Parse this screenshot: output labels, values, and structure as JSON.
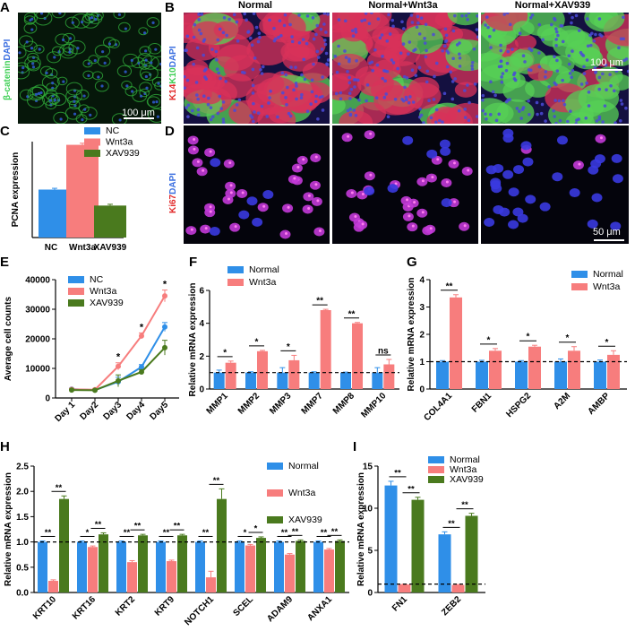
{
  "panels": {
    "a": "A",
    "b": "B",
    "c": "C",
    "d": "D",
    "e": "E",
    "f": "F",
    "g": "G",
    "h": "H",
    "i": "I"
  },
  "micrographs": {
    "columns": [
      "Normal",
      "Normal+Wnt3a",
      "Normal+XAV939"
    ],
    "a_label_green": "β-catenin",
    "a_label_blue": "DAPI",
    "a_scale": "100 μm",
    "b_label_red": "K14",
    "b_label_green": "K10",
    "b_label_blue": "DAPI",
    "b_scale": "100 μm",
    "d_label_red": "Ki67",
    "d_label_blue": "DAPI",
    "d_scale": "50 μm"
  },
  "colors": {
    "blue": "#2f8fe8",
    "red": "#f77d7d",
    "green": "#4a7a1e"
  },
  "chart_data": [
    {
      "panel": "C",
      "type": "bar",
      "categories": [
        "NC",
        "Wnt3a",
        "XAV939"
      ],
      "values": [
        1.5,
        2.9,
        1.0
      ],
      "errors": [
        0.04,
        0.05,
        0.04
      ],
      "colors": [
        "#2f8fe8",
        "#f77d7d",
        "#4a7a1e"
      ],
      "legend": [
        "NC",
        "Wnt3a",
        "XAV939"
      ],
      "legend_position": "top-right",
      "ylabel": "PCNA expression",
      "ylim": [
        0,
        3.0
      ]
    },
    {
      "panel": "E",
      "type": "line",
      "categories": [
        "Day 1",
        "Day2",
        "Day3",
        "Day4",
        "Day5"
      ],
      "series": [
        {
          "name": "NC",
          "values": [
            3000,
            2700,
            5500,
            10500,
            24000
          ],
          "errors": [
            300,
            300,
            1500,
            800,
            1500
          ],
          "color": "#2f8fe8"
        },
        {
          "name": "Wnt3a",
          "values": [
            2900,
            2800,
            10700,
            21000,
            34500
          ],
          "errors": [
            300,
            300,
            1200,
            1000,
            2000
          ],
          "color": "#f77d7d"
        },
        {
          "name": "XAV939",
          "values": [
            2700,
            2600,
            5800,
            8800,
            17000
          ],
          "errors": [
            300,
            300,
            2000,
            800,
            2500
          ],
          "color": "#4a7a1e"
        }
      ],
      "significance": [
        "",
        "",
        "*",
        "*",
        "*"
      ],
      "ylabel": "Average cell counts",
      "yticks": [
        "0",
        "10000",
        "20000",
        "30000",
        "40000"
      ],
      "ylim": [
        0,
        40000
      ],
      "legend_position": "top-left"
    },
    {
      "panel": "F",
      "type": "bar",
      "categories": [
        "MMP1",
        "MMP2",
        "MMP3",
        "MMP7",
        "MMP8",
        "MMP10"
      ],
      "series": [
        {
          "name": "Normal",
          "values": [
            1.0,
            1.0,
            1.0,
            1.0,
            1.0,
            1.0
          ],
          "errors": [
            0.15,
            0.05,
            0.3,
            0.05,
            0.03,
            0.3
          ],
          "color": "#2f8fe8"
        },
        {
          "name": "Wnt3a",
          "values": [
            1.6,
            2.3,
            1.75,
            4.8,
            4.0,
            1.5
          ],
          "errors": [
            0.1,
            0.05,
            0.3,
            0.05,
            0.05,
            0.3
          ],
          "color": "#f77d7d"
        }
      ],
      "significance": [
        "*",
        "*",
        "*",
        "**",
        "**",
        "ns"
      ],
      "ylabel": "Relative mRNA expression",
      "yticks": [
        "0",
        "2",
        "4",
        "6"
      ],
      "ylim": [
        0,
        6
      ],
      "reference_line": 1,
      "legend_position": "top-left"
    },
    {
      "panel": "G",
      "type": "bar",
      "categories": [
        "COL4A1",
        "FBN1",
        "HSPG2",
        "A2M",
        "AMBP"
      ],
      "series": [
        {
          "name": "Normal",
          "values": [
            1.0,
            1.0,
            1.0,
            1.0,
            1.0
          ],
          "errors": [
            0.04,
            0.05,
            0.04,
            0.1,
            0.06
          ],
          "color": "#2f8fe8"
        },
        {
          "name": "Wnt3a",
          "values": [
            3.35,
            1.4,
            1.55,
            1.4,
            1.25
          ],
          "errors": [
            0.1,
            0.08,
            0.05,
            0.15,
            0.15
          ],
          "color": "#f77d7d"
        }
      ],
      "significance": [
        "**",
        "*",
        "*",
        "*",
        "*"
      ],
      "ylabel": "Relative mRNA expression",
      "yticks": [
        "0",
        "1",
        "2",
        "3",
        "4"
      ],
      "ylim": [
        0,
        4
      ],
      "reference_line": 1,
      "legend_position": "top-right"
    },
    {
      "panel": "H",
      "type": "bar",
      "categories": [
        "KRT10",
        "KRT16",
        "KRT2",
        "KRT9",
        "NOTCH1",
        "SCEL",
        "ADAM9",
        "ANXA1"
      ],
      "series": [
        {
          "name": "Normal",
          "values": [
            1.0,
            1.0,
            1.0,
            1.0,
            1.0,
            1.0,
            1.0,
            1.0
          ],
          "errors": [
            0.02,
            0.02,
            0.02,
            0.02,
            0.02,
            0.02,
            0.02,
            0.02
          ],
          "color": "#2f8fe8"
        },
        {
          "name": "Wnt3a",
          "values": [
            0.23,
            0.9,
            0.6,
            0.62,
            0.3,
            0.93,
            0.75,
            0.85
          ],
          "errors": [
            0.02,
            0.02,
            0.03,
            0.02,
            0.12,
            0.02,
            0.02,
            0.02
          ],
          "color": "#f77d7d"
        },
        {
          "name": "XAV939",
          "values": [
            1.85,
            1.15,
            1.13,
            1.13,
            1.85,
            1.08,
            1.02,
            1.02
          ],
          "errors": [
            0.06,
            0.03,
            0.02,
            0.02,
            0.2,
            0.02,
            0.02,
            0.02
          ],
          "color": "#4a7a1e"
        }
      ],
      "significance_pairs": [
        [
          "**",
          "**"
        ],
        [
          "*",
          "**"
        ],
        [
          "**",
          "**"
        ],
        [
          "**",
          "**"
        ],
        [
          "**",
          "**"
        ],
        [
          "*",
          "*"
        ],
        [
          "**",
          "**"
        ],
        [
          "**",
          "**"
        ]
      ],
      "ylabel": "Relative mRNA expression",
      "yticks": [
        "0.0",
        "0.5",
        "1.0",
        "1.5",
        "2.0",
        "2.5"
      ],
      "ylim": [
        0,
        2.5
      ],
      "reference_line": 1,
      "legend_position": "top-right"
    },
    {
      "panel": "I",
      "type": "bar",
      "categories": [
        "FN1",
        "ZEB2"
      ],
      "series": [
        {
          "name": "Normal",
          "values": [
            12.7,
            6.9
          ],
          "errors": [
            0.5,
            0.3
          ],
          "color": "#2f8fe8"
        },
        {
          "name": "Wnt3a",
          "values": [
            0.95,
            0.9
          ],
          "errors": [
            0.05,
            0.05
          ],
          "color": "#f77d7d"
        },
        {
          "name": "XAV939",
          "values": [
            11.0,
            9.1
          ],
          "errors": [
            0.3,
            0.3
          ],
          "color": "#4a7a1e"
        }
      ],
      "significance_pairs": [
        [
          "**",
          "**"
        ],
        [
          "**",
          "**"
        ]
      ],
      "ylabel": "Relative mRNA expression",
      "yticks": [
        "0",
        "5",
        "10",
        "15"
      ],
      "ylim": [
        0,
        15
      ],
      "reference_line": 1,
      "legend_position": "top-right"
    }
  ]
}
